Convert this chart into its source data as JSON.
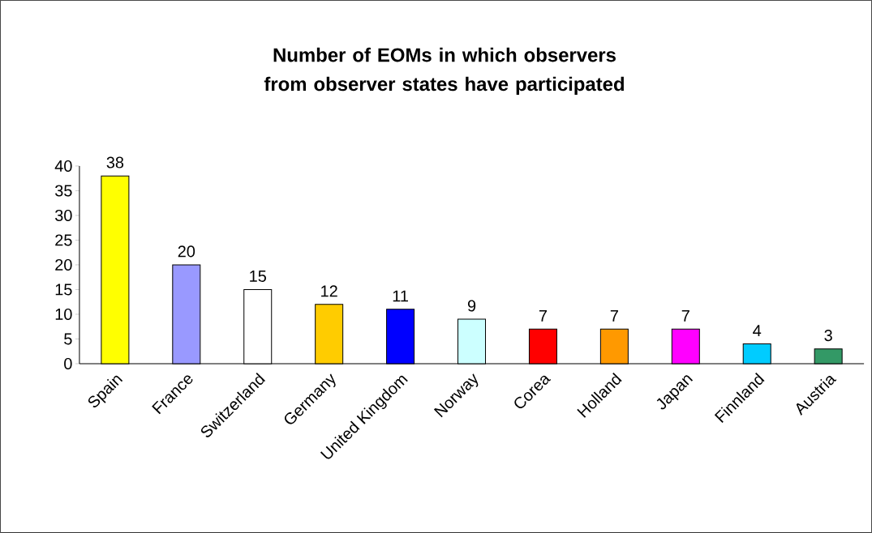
{
  "chart_data": {
    "type": "bar",
    "title": "Number of EOMs in which observers from observer states have participated",
    "categories": [
      "Spain",
      "France",
      "Switzerland",
      "Germany",
      "United Kingdom",
      "Norway",
      "Corea",
      "Holland",
      "Japan",
      "Finnland",
      "Austria"
    ],
    "values": [
      38,
      20,
      15,
      12,
      11,
      9,
      7,
      7,
      7,
      4,
      3
    ],
    "colors": [
      "#ffff00",
      "#9999ff",
      "#ffffff",
      "#ffcc00",
      "#0000ff",
      "#ccffff",
      "#ff0000",
      "#ff9900",
      "#ff00ff",
      "#00ccff",
      "#339966"
    ],
    "ylim": [
      0,
      40
    ],
    "yticks": [
      0,
      5,
      10,
      15,
      20,
      25,
      30,
      35,
      40
    ],
    "data_labels": true,
    "grid": false
  }
}
